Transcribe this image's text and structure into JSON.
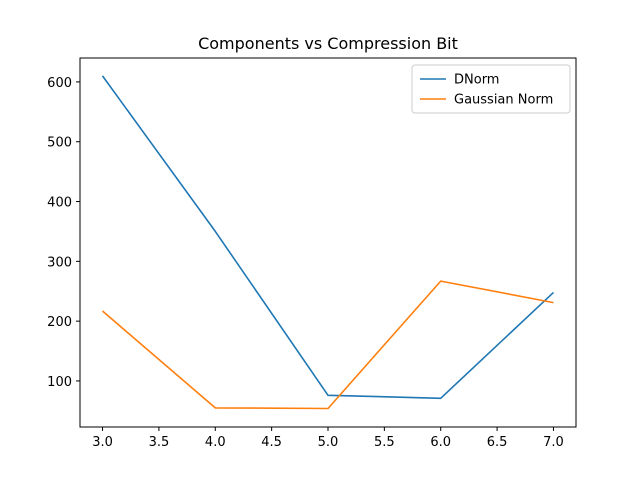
{
  "chart_data": {
    "type": "line",
    "title": "Components vs Compression Bit",
    "xlabel": "",
    "ylabel": "",
    "x": [
      3,
      4,
      5,
      6,
      7
    ],
    "series": [
      {
        "name": "DNorm",
        "color": "#1f77b4",
        "values": [
          610,
          350,
          76,
          71,
          248
        ]
      },
      {
        "name": "Gaussian Norm",
        "color": "#ff7f0e",
        "values": [
          217,
          55,
          54,
          267,
          231
        ]
      }
    ],
    "xlim": [
      2.8,
      7.2
    ],
    "ylim": [
      23,
      640
    ],
    "xticks": [
      "3.0",
      "3.5",
      "4.0",
      "4.5",
      "5.0",
      "5.5",
      "6.0",
      "6.5",
      "7.0"
    ],
    "yticks": [
      "100",
      "200",
      "300",
      "400",
      "500",
      "600"
    ],
    "grid": false,
    "legend": "top-right"
  }
}
